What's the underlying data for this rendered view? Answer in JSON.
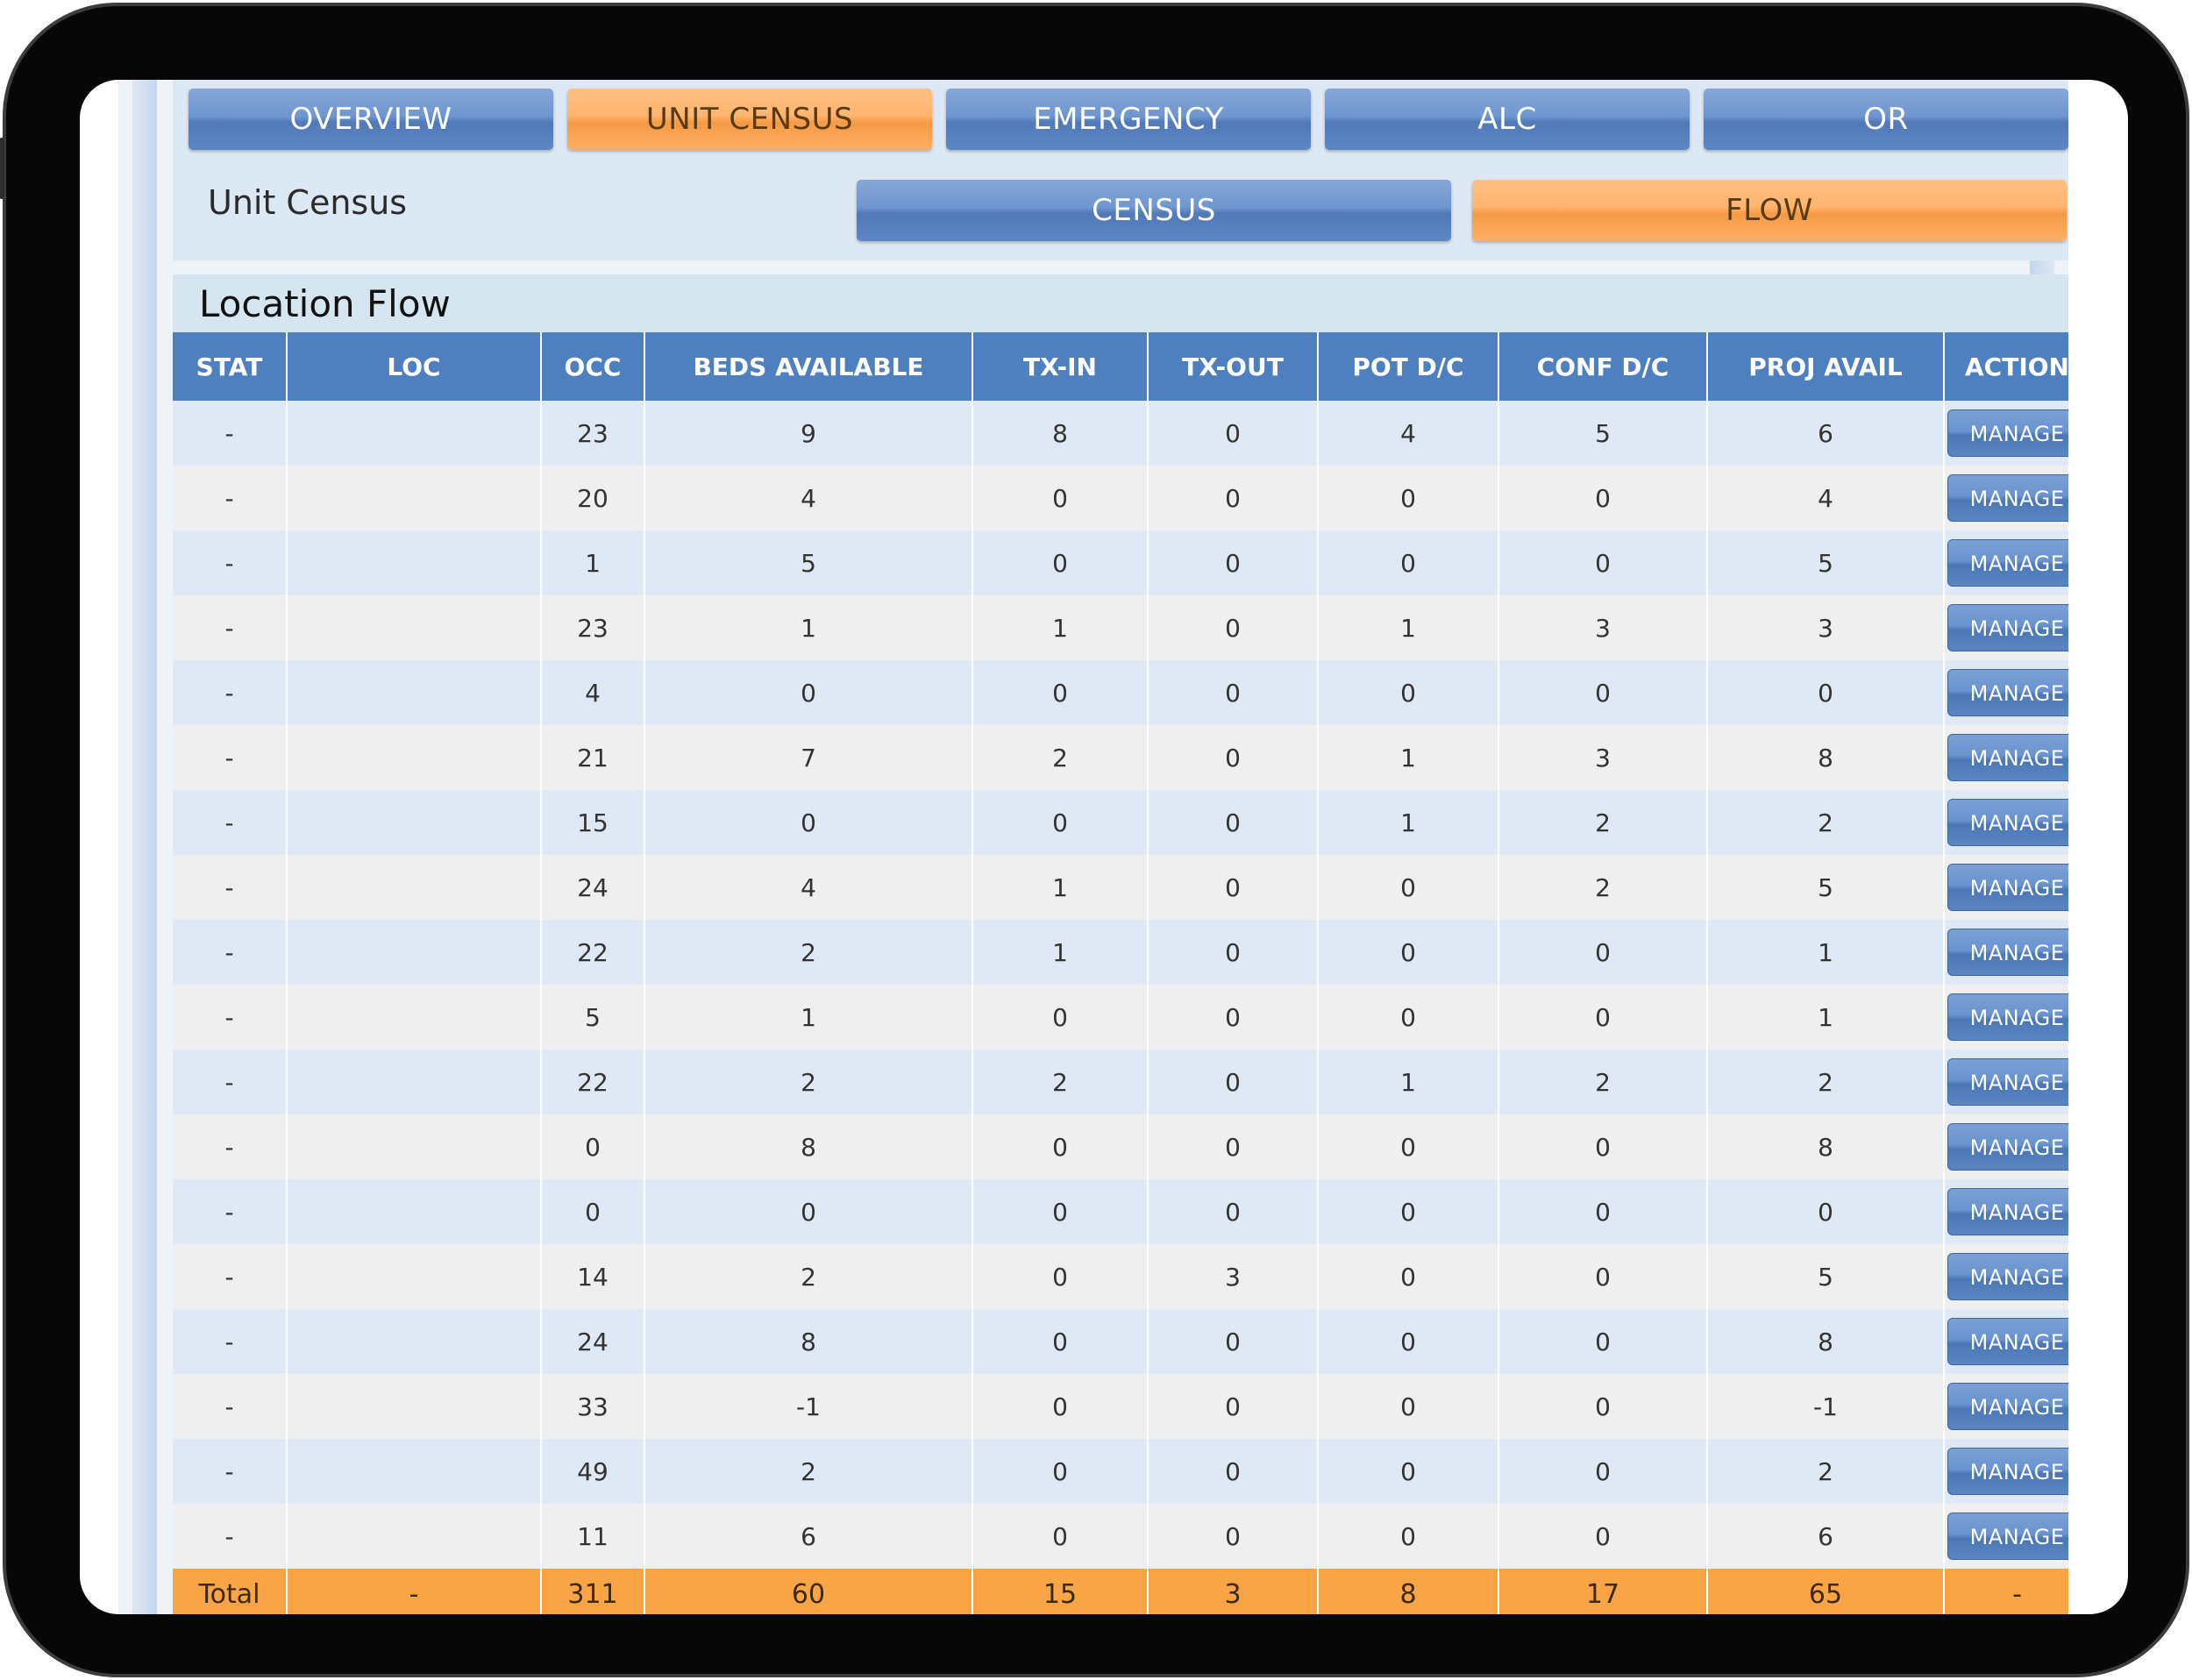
{
  "nav": {
    "tabs": [
      {
        "label": "OVERVIEW",
        "active": false
      },
      {
        "label": "UNIT CENSUS",
        "active": true
      },
      {
        "label": "EMERGENCY",
        "active": false
      },
      {
        "label": "ALC",
        "active": false
      },
      {
        "label": "OR",
        "active": false
      }
    ],
    "section_title": "Unit Census",
    "subtabs": [
      {
        "label": "CENSUS",
        "active": false
      },
      {
        "label": "FLOW",
        "active": true
      }
    ]
  },
  "flow": {
    "title": "Location Flow",
    "columns": [
      "STAT",
      "LOC",
      "OCC",
      "BEDS AVAILABLE",
      "TX-IN",
      "TX-OUT",
      "POT D/C",
      "CONF D/C",
      "PROJ AVAIL",
      "ACTION"
    ],
    "action_label": "MANAGE",
    "rows": [
      {
        "stat": "-",
        "loc": "",
        "occ": "23",
        "beds": "9",
        "txin": "8",
        "txout": "0",
        "potdc": "4",
        "confdc": "5",
        "proj": "6"
      },
      {
        "stat": "-",
        "loc": "",
        "occ": "20",
        "beds": "4",
        "txin": "0",
        "txout": "0",
        "potdc": "0",
        "confdc": "0",
        "proj": "4"
      },
      {
        "stat": "-",
        "loc": "",
        "occ": "1",
        "beds": "5",
        "txin": "0",
        "txout": "0",
        "potdc": "0",
        "confdc": "0",
        "proj": "5"
      },
      {
        "stat": "-",
        "loc": "",
        "occ": "23",
        "beds": "1",
        "txin": "1",
        "txout": "0",
        "potdc": "1",
        "confdc": "3",
        "proj": "3"
      },
      {
        "stat": "-",
        "loc": "",
        "occ": "4",
        "beds": "0",
        "txin": "0",
        "txout": "0",
        "potdc": "0",
        "confdc": "0",
        "proj": "0"
      },
      {
        "stat": "-",
        "loc": "",
        "occ": "21",
        "beds": "7",
        "txin": "2",
        "txout": "0",
        "potdc": "1",
        "confdc": "3",
        "proj": "8"
      },
      {
        "stat": "-",
        "loc": "",
        "occ": "15",
        "beds": "0",
        "txin": "0",
        "txout": "0",
        "potdc": "1",
        "confdc": "2",
        "proj": "2"
      },
      {
        "stat": "-",
        "loc": "",
        "occ": "24",
        "beds": "4",
        "txin": "1",
        "txout": "0",
        "potdc": "0",
        "confdc": "2",
        "proj": "5"
      },
      {
        "stat": "-",
        "loc": "",
        "occ": "22",
        "beds": "2",
        "txin": "1",
        "txout": "0",
        "potdc": "0",
        "confdc": "0",
        "proj": "1"
      },
      {
        "stat": "-",
        "loc": "",
        "occ": "5",
        "beds": "1",
        "txin": "0",
        "txout": "0",
        "potdc": "0",
        "confdc": "0",
        "proj": "1"
      },
      {
        "stat": "-",
        "loc": "",
        "occ": "22",
        "beds": "2",
        "txin": "2",
        "txout": "0",
        "potdc": "1",
        "confdc": "2",
        "proj": "2"
      },
      {
        "stat": "-",
        "loc": "",
        "occ": "0",
        "beds": "8",
        "txin": "0",
        "txout": "0",
        "potdc": "0",
        "confdc": "0",
        "proj": "8"
      },
      {
        "stat": "-",
        "loc": "",
        "occ": "0",
        "beds": "0",
        "txin": "0",
        "txout": "0",
        "potdc": "0",
        "confdc": "0",
        "proj": "0"
      },
      {
        "stat": "-",
        "loc": "",
        "occ": "14",
        "beds": "2",
        "txin": "0",
        "txout": "3",
        "potdc": "0",
        "confdc": "0",
        "proj": "5"
      },
      {
        "stat": "-",
        "loc": "",
        "occ": "24",
        "beds": "8",
        "txin": "0",
        "txout": "0",
        "potdc": "0",
        "confdc": "0",
        "proj": "8"
      },
      {
        "stat": "-",
        "loc": "",
        "occ": "33",
        "beds": "-1",
        "txin": "0",
        "txout": "0",
        "potdc": "0",
        "confdc": "0",
        "proj": "-1"
      },
      {
        "stat": "-",
        "loc": "",
        "occ": "49",
        "beds": "2",
        "txin": "0",
        "txout": "0",
        "potdc": "0",
        "confdc": "0",
        "proj": "2"
      },
      {
        "stat": "-",
        "loc": "",
        "occ": "11",
        "beds": "6",
        "txin": "0",
        "txout": "0",
        "potdc": "0",
        "confdc": "0",
        "proj": "6"
      }
    ],
    "total": {
      "stat": "Total",
      "loc": "-",
      "occ": "311",
      "beds": "60",
      "txin": "15",
      "txout": "3",
      "potdc": "8",
      "confdc": "17",
      "proj": "65",
      "action": "-"
    }
  },
  "colors": {
    "active_tab": "#ffb46e",
    "inactive_tab": "#6f96cf",
    "header_blue": "#4e7fbf",
    "total_row": "#f9a545"
  }
}
